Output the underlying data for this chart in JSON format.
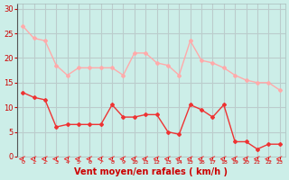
{
  "hours": [
    0,
    1,
    2,
    3,
    4,
    5,
    6,
    7,
    8,
    9,
    10,
    11,
    12,
    13,
    14,
    15,
    16,
    17,
    18,
    19,
    20,
    21,
    22,
    23
  ],
  "wind_avg": [
    13,
    12,
    11.5,
    6,
    6.5,
    6.5,
    6.5,
    6.5,
    10.5,
    8,
    8,
    8.5,
    8.5,
    5,
    4.5,
    10.5,
    9.5,
    8,
    10.5,
    3,
    3,
    1.5,
    2.5,
    2.5
  ],
  "wind_gust": [
    26.5,
    24,
    23.5,
    18.5,
    16.5,
    18,
    18,
    18,
    18,
    16.5,
    21,
    21,
    19,
    18.5,
    16.5,
    23.5,
    19.5,
    19,
    18,
    16.5,
    15.5,
    15,
    15,
    13.5
  ],
  "bg_color": "#cceee8",
  "grid_color": "#bbcccc",
  "line_avg_color": "#ee3333",
  "line_gust_color": "#ffaaaa",
  "marker_size": 2,
  "xlabel": "Vent moyen/en rafales ( km/h )",
  "xlabel_color": "#cc0000",
  "tick_color": "#cc0000",
  "ylabel_ticks": [
    0,
    5,
    10,
    15,
    20,
    25,
    30
  ],
  "xlim": [
    -0.5,
    23.5
  ],
  "ylim": [
    0,
    31
  ]
}
